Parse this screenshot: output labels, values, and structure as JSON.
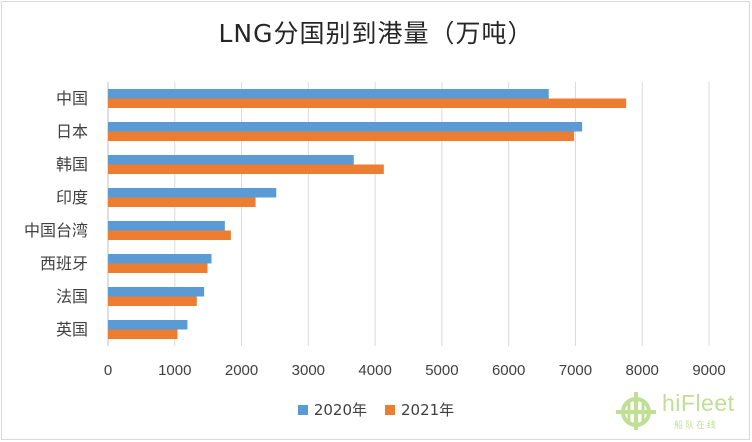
{
  "chart_data": {
    "type": "bar",
    "orientation": "horizontal",
    "title": "LNG分国别到港量（万吨）",
    "categories": [
      "中国",
      "日本",
      "韩国",
      "印度",
      "中国台湾",
      "西班牙",
      "法国",
      "英国"
    ],
    "series": [
      {
        "name": "2020年",
        "color": "#5b9bd5",
        "values": [
          6600,
          7100,
          3680,
          2520,
          1750,
          1550,
          1440,
          1190
        ]
      },
      {
        "name": "2021年",
        "color": "#ed7d31",
        "values": [
          7760,
          6980,
          4130,
          2210,
          1840,
          1490,
          1330,
          1040
        ]
      }
    ],
    "xlim": [
      0,
      9000
    ],
    "xticks": [
      "0",
      "1000",
      "2000",
      "3000",
      "4000",
      "5000",
      "6000",
      "7000",
      "8000",
      "9000"
    ],
    "grid": "vertical",
    "legend_position": "bottom"
  },
  "watermark": {
    "brand": "hiFleet",
    "tagline": "船队在线",
    "icon": "crosshair-globe-icon"
  }
}
